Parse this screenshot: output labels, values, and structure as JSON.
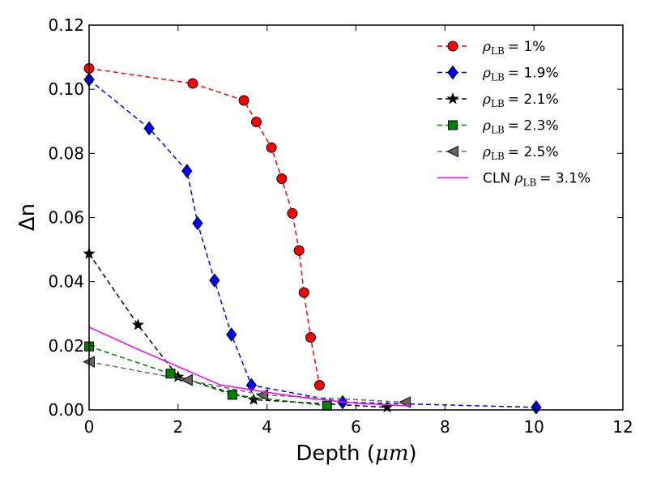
{
  "chart_data": {
    "type": "line",
    "title": "",
    "xlabel": "Depth",
    "xlabel_unit": "μm",
    "ylabel": "Δn",
    "xlim": [
      0,
      12
    ],
    "ylim": [
      0,
      0.12
    ],
    "xticks": [
      0,
      2,
      4,
      6,
      8,
      10,
      12
    ],
    "yticks": [
      0.0,
      0.02,
      0.04,
      0.06,
      0.08,
      0.1,
      0.12
    ],
    "xtick_labels": [
      "0",
      "2",
      "4",
      "6",
      "8",
      "10",
      "12"
    ],
    "ytick_labels": [
      "0.00",
      "0.02",
      "0.04",
      "0.06",
      "0.08",
      "0.10",
      "0.12"
    ],
    "grid": false,
    "legend_position": "top-right",
    "series": [
      {
        "name": "ρLB = 1%",
        "label_symbol": "ρ",
        "label_sub": "LB",
        "label_value": "= 1%",
        "color": "#ff0000",
        "marker": "circle",
        "line_style": "dashed",
        "x": [
          0,
          2.33,
          3.48,
          3.76,
          4.1,
          4.33,
          4.57,
          4.72,
          4.83,
          4.98,
          5.18
        ],
        "y": [
          0.1065,
          0.1018,
          0.0965,
          0.0898,
          0.0818,
          0.0721,
          0.0613,
          0.0497,
          0.0366,
          0.0226,
          0.0077
        ]
      },
      {
        "name": "ρLB = 1.9%",
        "label_symbol": "ρ",
        "label_sub": "LB",
        "label_value": "= 1.9%",
        "color": "#0000ff",
        "marker": "diamond",
        "line_style": "dashed",
        "x": [
          0,
          1.35,
          2.2,
          2.44,
          2.82,
          3.2,
          3.65,
          5.7,
          10.05
        ],
        "y": [
          0.103,
          0.0878,
          0.0745,
          0.0582,
          0.0404,
          0.0235,
          0.0077,
          0.0024,
          0.0008
        ]
      },
      {
        "name": "ρLB = 2.1%",
        "label_symbol": "ρ",
        "label_sub": "LB",
        "label_value": "= 2.1%",
        "color": "#000000",
        "marker": "star",
        "line_style": "dashed",
        "x": [
          0,
          1.1,
          2.0,
          3.7,
          6.7
        ],
        "y": [
          0.0487,
          0.0265,
          0.0103,
          0.0032,
          0.0008
        ]
      },
      {
        "name": "ρLB = 2.3%",
        "label_symbol": "ρ",
        "label_sub": "LB",
        "label_value": "= 2.3%",
        "color": "#008000",
        "marker": "square",
        "line_style": "dashed",
        "x": [
          0,
          1.83,
          3.22,
          5.35
        ],
        "y": [
          0.0198,
          0.0113,
          0.0047,
          0.0013
        ]
      },
      {
        "name": "ρLB = 2.5%",
        "label_symbol": "ρ",
        "label_sub": "LB",
        "label_value": "= 2.5%",
        "color": "#666666",
        "marker": "triangle-left",
        "line_style": "dashed",
        "x": [
          0,
          2.2,
          3.9,
          7.1
        ],
        "y": [
          0.015,
          0.0093,
          0.0047,
          0.0024
        ]
      },
      {
        "name": "CLN ρLB = 3.1%",
        "label_prefix": "CLN ",
        "label_symbol": "ρ",
        "label_sub": "LB",
        "label_value": "= 3.1%",
        "color": "#ff00ff",
        "marker": "none",
        "line_style": "solid",
        "x": [
          0,
          1.0,
          2.0,
          2.95,
          4.0,
          5.0,
          6.0,
          7.25
        ],
        "y": [
          0.0258,
          0.0195,
          0.0135,
          0.0078,
          0.0055,
          0.0035,
          0.0021,
          0.0012
        ]
      }
    ]
  }
}
